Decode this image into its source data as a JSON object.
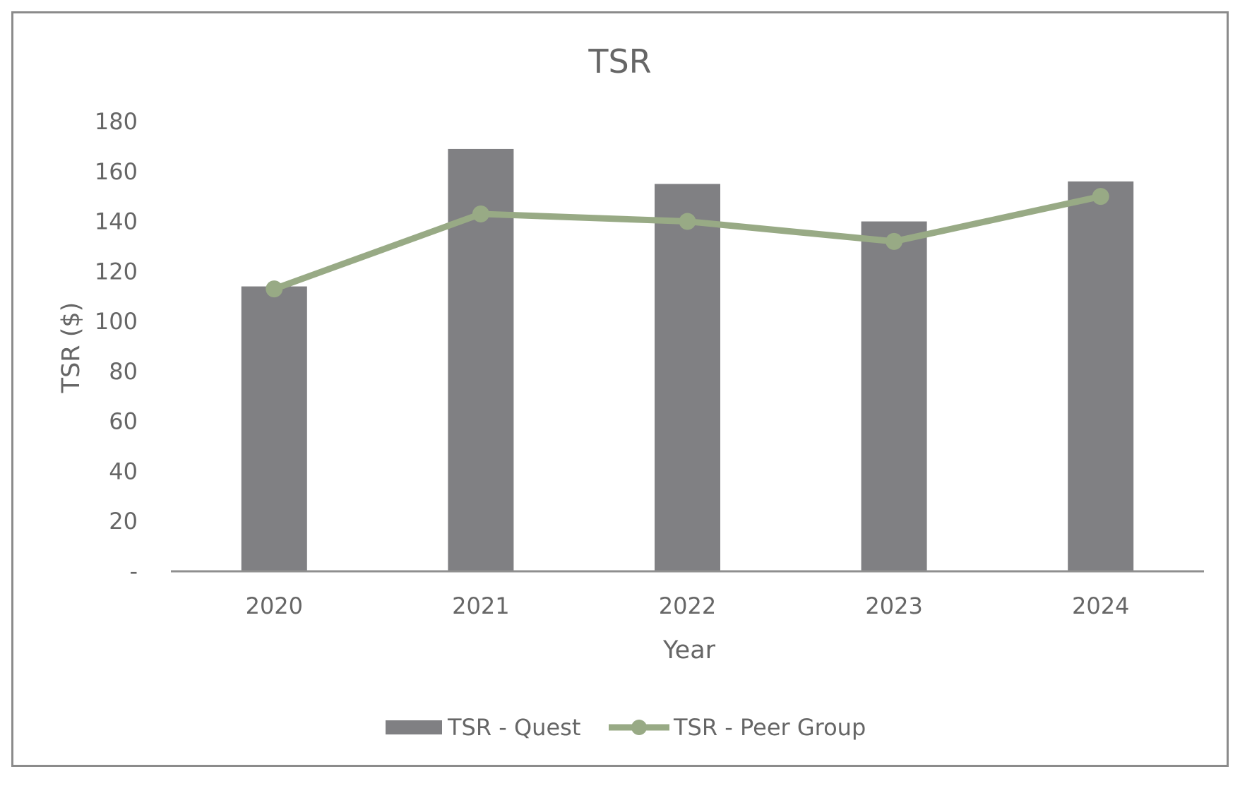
{
  "chart_data": {
    "type": "bar+line",
    "title": "TSR",
    "xlabel": "Year",
    "ylabel": "TSR ($)",
    "categories": [
      "2020",
      "2021",
      "2022",
      "2023",
      "2024"
    ],
    "ylim": [
      0,
      180
    ],
    "yticks": [
      0,
      20,
      40,
      60,
      80,
      100,
      120,
      140,
      160,
      180
    ],
    "ytick_labels": [
      "-",
      "20",
      "40",
      "60",
      "80",
      "100",
      "120",
      "140",
      "160",
      "180"
    ],
    "grid": false,
    "legend_position": "bottom",
    "series": [
      {
        "name": "TSR - Quest",
        "type": "bar",
        "color": "#808083",
        "values": [
          114,
          169,
          155,
          140,
          156
        ]
      },
      {
        "name": "TSR - Peer Group",
        "type": "line",
        "color": "#98aa85",
        "values": [
          113,
          143,
          140,
          132,
          150
        ]
      }
    ]
  }
}
